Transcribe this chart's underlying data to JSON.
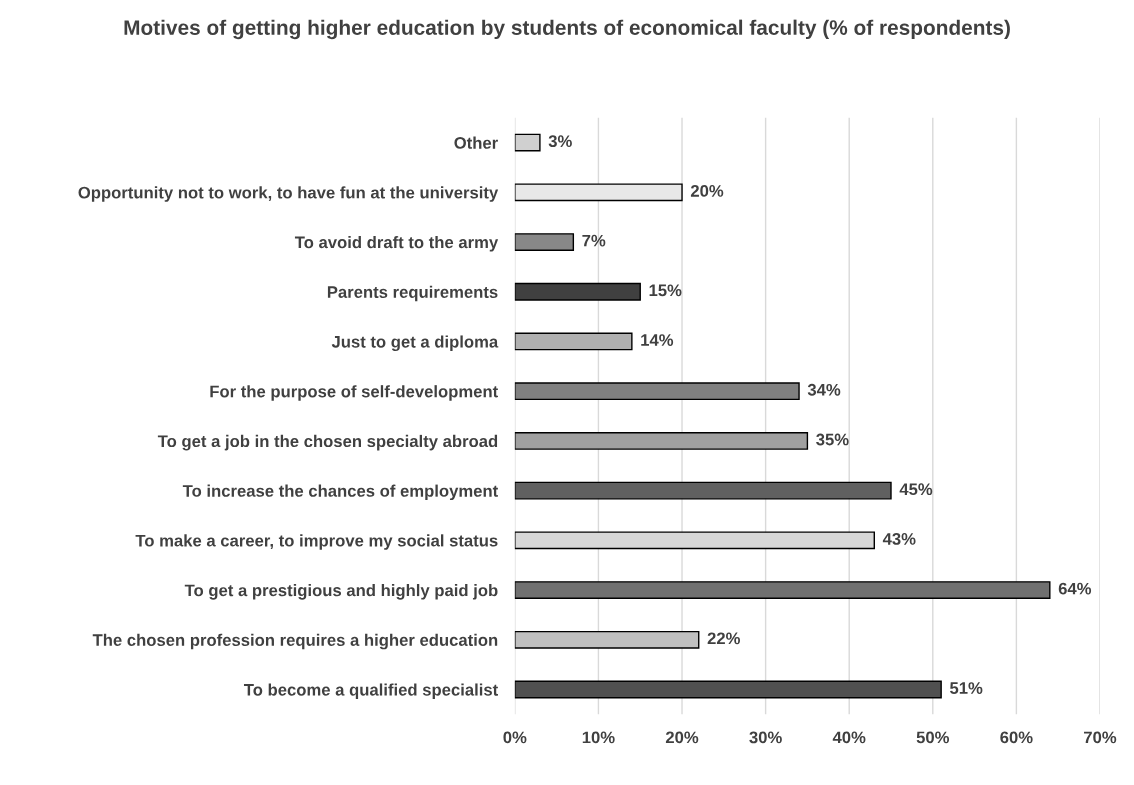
{
  "chart_data": {
    "type": "bar",
    "orientation": "horizontal",
    "title": "Motives of getting higher education by students of economical faculty (% of respondents)",
    "categories": [
      "Other",
      "Opportunity not to work, to have fun at the university",
      "To avoid draft to the army",
      "Parents requirements",
      "Just to get a diploma",
      "For the purpose of self-development",
      "To get a job in the chosen specialty abroad",
      "To increase the chances of employment",
      "To make a career, to improve my social status",
      "To get a prestigious and highly paid job",
      "The chosen profession requires a higher education",
      "To become a qualified specialist"
    ],
    "values": [
      3,
      20,
      7,
      15,
      14,
      34,
      35,
      45,
      43,
      64,
      22,
      51
    ],
    "value_labels": [
      "3%",
      "20%",
      "7%",
      "15%",
      "14%",
      "34%",
      "35%",
      "45%",
      "43%",
      "64%",
      "22%",
      "51%"
    ],
    "colors": [
      "#d0d0d0",
      "#e8e8e8",
      "#888888",
      "#404040",
      "#b0b0b0",
      "#808080",
      "#a0a0a0",
      "#606060",
      "#d8d8d8",
      "#707070",
      "#c0c0c0",
      "#505050"
    ],
    "xlim": [
      0,
      70
    ],
    "xticks": [
      {
        "value": 0,
        "label": "0%"
      },
      {
        "value": 10,
        "label": "10%"
      },
      {
        "value": 20,
        "label": "20%"
      },
      {
        "value": 30,
        "label": "30%"
      },
      {
        "value": 40,
        "label": "40%"
      },
      {
        "value": 50,
        "label": "50%"
      },
      {
        "value": 60,
        "label": "60%"
      },
      {
        "value": 70,
        "label": "70%"
      }
    ],
    "grid": "x",
    "legend": false
  }
}
